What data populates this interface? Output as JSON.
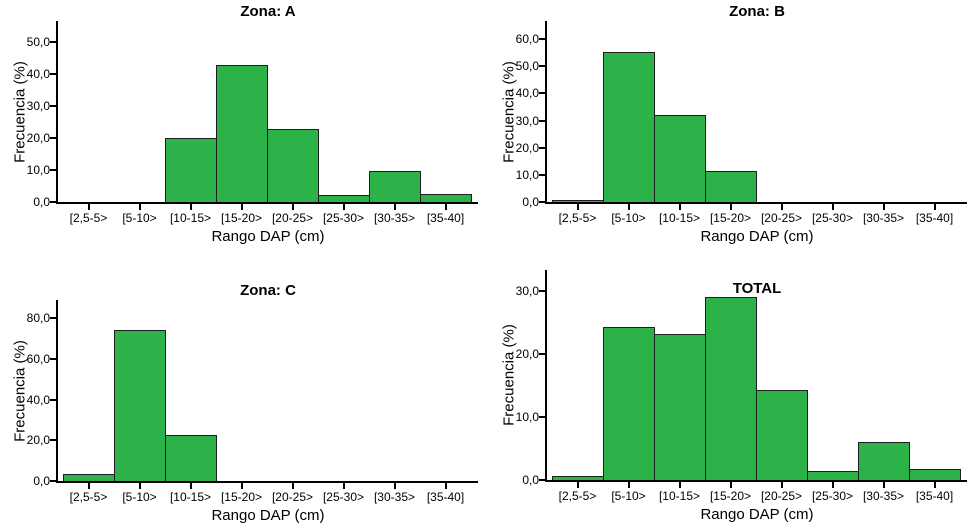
{
  "colors": {
    "background": "#ffffff",
    "bar_fill": "#2db24a",
    "bar_border": "#1e1e1e",
    "axis": "#000000",
    "text": "#000000"
  },
  "chart_data": [
    {
      "type": "bar",
      "title": "Zona: A",
      "xlabel": "Rango DAP (cm)",
      "ylabel": "Frecuencia (%)",
      "categories": [
        "[2,5-5>",
        "[5-10>",
        "[10-15>",
        "[15-20>",
        "[20-25>",
        "[25-30>",
        "[30-35>",
        "[35-40]"
      ],
      "values": [
        0,
        0,
        20.0,
        42.7,
        22.9,
        2.2,
        9.6,
        2.5
      ],
      "ytick_values": [
        0,
        10,
        20,
        30,
        40,
        50
      ],
      "ytick_labels": [
        "0,0",
        "10,0",
        "20,0",
        "30,0",
        "40,0",
        "50,0"
      ],
      "ylim": [
        0,
        56.5
      ],
      "grid": false,
      "legend_position": "none"
    },
    {
      "type": "bar",
      "title": "Zona: B",
      "xlabel": "Rango DAP (cm)",
      "ylabel": "Frecuencia (%)",
      "categories": [
        "[2,5-5>",
        "[5-10>",
        "[10-15>",
        "[15-20>",
        "[20-25>",
        "[25-30>",
        "[30-35>",
        "[35-40]"
      ],
      "values": [
        0.8,
        55.2,
        32.2,
        11.5,
        0,
        0,
        0,
        0
      ],
      "ytick_values": [
        0,
        10,
        20,
        30,
        40,
        50,
        60
      ],
      "ytick_labels": [
        "0,0",
        "10,0",
        "20,0",
        "30,0",
        "40,0",
        "50,0",
        "60,0"
      ],
      "ylim": [
        0,
        66.7
      ],
      "grid": false,
      "legend_position": "none"
    },
    {
      "type": "bar",
      "title": "Zona: C",
      "xlabel": "Rango DAP (cm)",
      "ylabel": "Frecuencia (%)",
      "categories": [
        "[2,5-5>",
        "[5-10>",
        "[10-15>",
        "[15-20>",
        "[20-25>",
        "[25-30>",
        "[30-35>",
        "[35-40]"
      ],
      "values": [
        3.3,
        74.2,
        22.5,
        0,
        0,
        0,
        0,
        0
      ],
      "ytick_values": [
        0,
        20,
        40,
        60,
        80
      ],
      "ytick_labels": [
        "0,0",
        "20,0",
        "40,0",
        "60,0",
        "80,0"
      ],
      "ylim": [
        0,
        89
      ],
      "grid": false,
      "legend_position": "none"
    },
    {
      "type": "bar",
      "title": "TOTAL",
      "xlabel": "Rango DAP (cm)",
      "ylabel": "Frecuencia (%)",
      "categories": [
        "[2,5-5>",
        "[5-10>",
        "[10-15>",
        "[15-20>",
        "[20-25>",
        "[25-30>",
        "[30-35>",
        "[35-40]"
      ],
      "values": [
        0.7,
        24.2,
        23.1,
        29.0,
        14.2,
        1.5,
        6.1,
        1.7
      ],
      "ytick_values": [
        0,
        10,
        20,
        30
      ],
      "ytick_labels": [
        "0,0",
        "10,0",
        "20,0",
        "30,0"
      ],
      "ylim": [
        0,
        33.3
      ],
      "grid": false,
      "legend_position": "none"
    }
  ]
}
